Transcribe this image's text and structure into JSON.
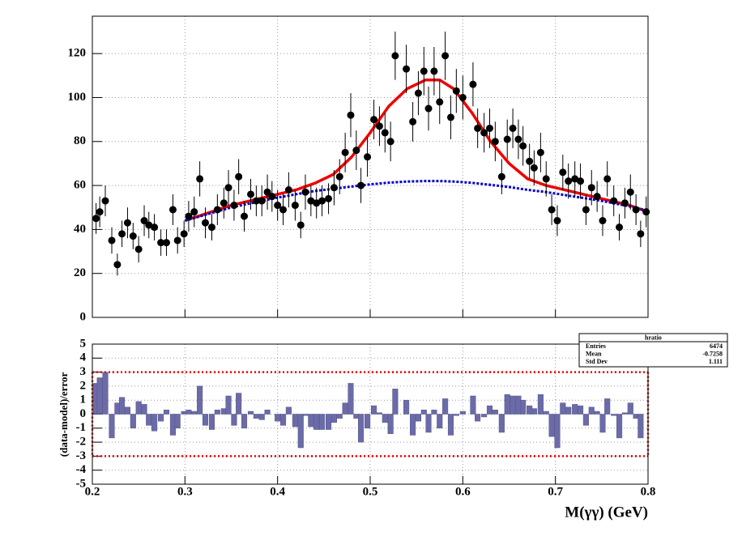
{
  "chart_data": [
    {
      "type": "fit",
      "xlim": [
        0.2,
        0.8
      ],
      "ylim": [
        0,
        137
      ],
      "yticks": [
        0,
        20,
        40,
        60,
        80,
        100,
        120
      ],
      "xticks": [
        0.2,
        0.3,
        0.4,
        0.5,
        0.6,
        0.7,
        0.8
      ],
      "grid": true,
      "points": {
        "color": "#000000",
        "x": [
          0.204,
          0.208,
          0.214,
          0.221,
          0.227,
          0.232,
          0.238,
          0.244,
          0.25,
          0.256,
          0.261,
          0.267,
          0.274,
          0.28,
          0.287,
          0.292,
          0.299,
          0.304,
          0.31,
          0.316,
          0.322,
          0.329,
          0.335,
          0.342,
          0.347,
          0.353,
          0.358,
          0.364,
          0.371,
          0.377,
          0.383,
          0.389,
          0.394,
          0.4,
          0.406,
          0.412,
          0.419,
          0.425,
          0.43,
          0.436,
          0.442,
          0.448,
          0.455,
          0.461,
          0.467,
          0.473,
          0.479,
          0.485,
          0.49,
          0.497,
          0.504,
          0.51,
          0.516,
          0.522,
          0.527,
          0.539,
          0.546,
          0.552,
          0.558,
          0.563,
          0.569,
          0.575,
          0.581,
          0.587,
          0.593,
          0.6,
          0.611,
          0.616,
          0.623,
          0.629,
          0.635,
          0.642,
          0.648,
          0.654,
          0.66,
          0.665,
          0.672,
          0.677,
          0.684,
          0.69,
          0.696,
          0.702,
          0.708,
          0.714,
          0.721,
          0.727,
          0.733,
          0.739,
          0.745,
          0.751,
          0.756,
          0.763,
          0.769,
          0.775,
          0.781,
          0.787,
          0.792,
          0.798
        ],
        "values": [
          45,
          48,
          53,
          35,
          24,
          38,
          43,
          37,
          31,
          44,
          42,
          41,
          34,
          34,
          49,
          35,
          38,
          46,
          48,
          63,
          43,
          41,
          49,
          52,
          59,
          51,
          64,
          46,
          56,
          53,
          53,
          57,
          55,
          51,
          49,
          58,
          51,
          42,
          57,
          53,
          52,
          53,
          54,
          59,
          64,
          75,
          92,
          76,
          60,
          73,
          90,
          87,
          84,
          80,
          119,
          113,
          89,
          102,
          112,
          95,
          112,
          98,
          119,
          91,
          103,
          100,
          106,
          86,
          84,
          86,
          80,
          64,
          81,
          86,
          81,
          78,
          71,
          68,
          75,
          63,
          49,
          44,
          66,
          62,
          63,
          62,
          49,
          59,
          55,
          44,
          63,
          53,
          41,
          52,
          57,
          49,
          38,
          48
        ],
        "errors": [
          7,
          7,
          7,
          6,
          5,
          6,
          7,
          6,
          6,
          7,
          6,
          6,
          6,
          6,
          7,
          6,
          6,
          7,
          7,
          8,
          7,
          6,
          7,
          7,
          8,
          7,
          8,
          7,
          7,
          7,
          7,
          8,
          7,
          7,
          7,
          8,
          7,
          6,
          8,
          7,
          7,
          7,
          7,
          8,
          8,
          9,
          10,
          9,
          8,
          9,
          9,
          9,
          9,
          9,
          11,
          11,
          9,
          10,
          11,
          10,
          11,
          10,
          11,
          10,
          10,
          10,
          10,
          9,
          9,
          9,
          9,
          8,
          9,
          9,
          9,
          9,
          8,
          8,
          9,
          8,
          7,
          7,
          8,
          8,
          8,
          8,
          7,
          8,
          7,
          7,
          8,
          7,
          6,
          7,
          8,
          7,
          6,
          7
        ]
      },
      "curves": [
        {
          "color": "#ee0000",
          "style": "solid",
          "x": [
            0.3,
            0.35,
            0.4,
            0.42,
            0.44,
            0.46,
            0.48,
            0.5,
            0.52,
            0.54,
            0.56,
            0.575,
            0.59,
            0.61,
            0.63,
            0.65,
            0.67,
            0.69,
            0.72,
            0.75,
            0.78,
            0.8
          ],
          "values": [
            44,
            51,
            56,
            58,
            61,
            65,
            73,
            84,
            96,
            104,
            108,
            108,
            104,
            93,
            80,
            70,
            63,
            60,
            57,
            54,
            51,
            48
          ]
        },
        {
          "color": "#0000cc",
          "style": "dotted",
          "x": [
            0.3,
            0.35,
            0.4,
            0.42,
            0.44,
            0.46,
            0.48,
            0.5,
            0.52,
            0.54,
            0.56,
            0.575,
            0.59,
            0.61,
            0.63,
            0.65,
            0.67,
            0.69,
            0.72,
            0.75,
            0.78,
            0.8
          ],
          "values": [
            44,
            50,
            54.5,
            56,
            57.5,
            58.5,
            59.5,
            60.5,
            61.3,
            61.8,
            62,
            62,
            61.8,
            61.2,
            60.3,
            59.3,
            58,
            57,
            55,
            53,
            50.5,
            48.5
          ]
        }
      ]
    },
    {
      "type": "bar",
      "xlim": [
        0.2,
        0.8
      ],
      "ylim": [
        -5,
        5
      ],
      "yticks": [
        -5,
        -4,
        -3,
        -2,
        -1,
        0,
        1,
        2,
        3,
        4,
        5
      ],
      "xticks": [
        0.2,
        0.3,
        0.4,
        0.5,
        0.6,
        0.7,
        0.8
      ],
      "grid": true,
      "x_label": "M(γγ) (GeV)",
      "y_label": "(data-model)/error",
      "color": "#6b6ba8",
      "band": {
        "color": "#ee0000",
        "range": [
          -3,
          3
        ]
      },
      "x": [
        0.204,
        0.208,
        0.214,
        0.221,
        0.227,
        0.232,
        0.238,
        0.244,
        0.25,
        0.256,
        0.261,
        0.267,
        0.274,
        0.28,
        0.287,
        0.292,
        0.299,
        0.304,
        0.31,
        0.316,
        0.322,
        0.329,
        0.335,
        0.342,
        0.347,
        0.353,
        0.358,
        0.364,
        0.371,
        0.377,
        0.383,
        0.389,
        0.394,
        0.4,
        0.406,
        0.412,
        0.419,
        0.425,
        0.43,
        0.436,
        0.442,
        0.448,
        0.455,
        0.461,
        0.467,
        0.473,
        0.479,
        0.485,
        0.49,
        0.497,
        0.504,
        0.51,
        0.516,
        0.522,
        0.527,
        0.539,
        0.546,
        0.552,
        0.558,
        0.563,
        0.569,
        0.575,
        0.581,
        0.587,
        0.593,
        0.6,
        0.611,
        0.616,
        0.623,
        0.629,
        0.635,
        0.642,
        0.648,
        0.654,
        0.66,
        0.665,
        0.672,
        0.677,
        0.684,
        0.69,
        0.696,
        0.702,
        0.708,
        0.714,
        0.721,
        0.727,
        0.733,
        0.739,
        0.745,
        0.751,
        0.756,
        0.763,
        0.769,
        0.775,
        0.781,
        0.787,
        0.792,
        0.798
      ],
      "values": [
        2.2,
        2.6,
        3.0,
        -1.7,
        0.8,
        1.2,
        0.5,
        -1.0,
        0.9,
        0.7,
        -0.8,
        -1.2,
        -0.5,
        0.3,
        -1.5,
        -1.0,
        0.2,
        0.3,
        0.2,
        2.0,
        -0.8,
        -1.1,
        0.3,
        0.4,
        1.3,
        -0.8,
        1.5,
        -1.0,
        0.2,
        -0.3,
        -0.4,
        0.3,
        0.0,
        -0.5,
        -0.8,
        0.5,
        -0.9,
        -2.4,
        -0.1,
        -0.9,
        -1.1,
        -1.1,
        -1.1,
        -0.6,
        -0.3,
        0.8,
        2.2,
        -0.3,
        -2.0,
        -1.0,
        0.6,
        0.1,
        -0.6,
        -1.4,
        1.8,
        1.0,
        -1.5,
        -0.5,
        0.3,
        -1.3,
        0.3,
        -1.0,
        1.1,
        -1.5,
        -0.1,
        0.2,
        1.3,
        -0.5,
        -0.2,
        0.6,
        0.3,
        -1.3,
        1.4,
        1.3,
        1.3,
        1.0,
        0.6,
        0.4,
        1.4,
        0.2,
        -1.6,
        -2.4,
        0.8,
        0.5,
        0.7,
        0.6,
        -0.8,
        0.5,
        0.2,
        -1.3,
        1.1,
        -0.1,
        -1.7,
        0.1,
        0.8,
        -0.3,
        -1.7,
        0.0
      ],
      "stats": {
        "title": "hratio",
        "rows": [
          [
            "Entries",
            "6474"
          ],
          [
            "Mean",
            "-0.7258"
          ],
          [
            "Std Dev",
            "1.111"
          ]
        ]
      }
    }
  ]
}
